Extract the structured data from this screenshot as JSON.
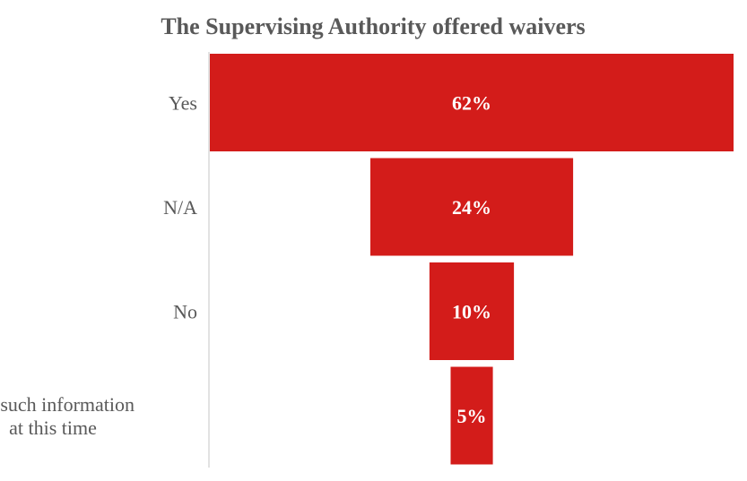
{
  "chart_data": {
    "type": "bar",
    "subtype": "funnel",
    "title": "The Supervising Authority offered waivers",
    "categories": [
      "Yes",
      "N/A",
      "No",
      "No such information at this time"
    ],
    "category_lines": [
      [
        "Yes"
      ],
      [
        "N/A"
      ],
      [
        "No"
      ],
      [
        "No such information",
        "at this time"
      ]
    ],
    "values": [
      62,
      24,
      10,
      5
    ],
    "value_labels": [
      "62%",
      "24%",
      "10%",
      "5%"
    ],
    "unit": "%",
    "bar_color": "#D31C1A",
    "label_color": "#595959",
    "value_label_color": "#FFFFFF",
    "axis_line_color": "#D9D9D9",
    "grid": false,
    "legend": "none"
  }
}
